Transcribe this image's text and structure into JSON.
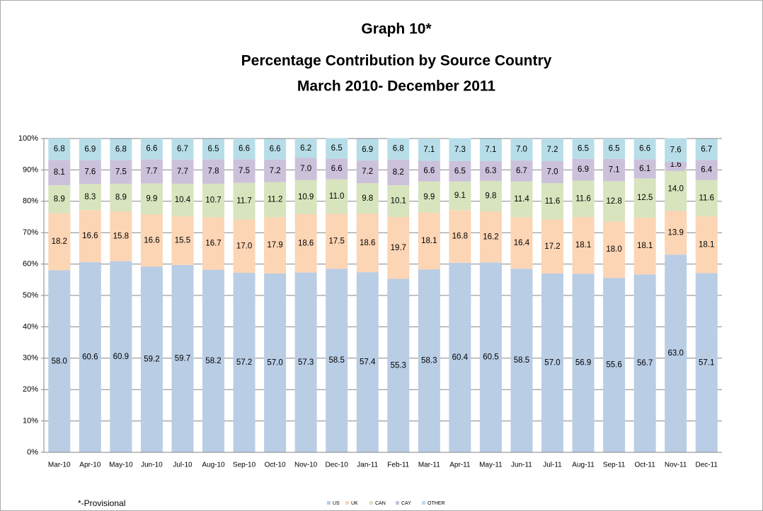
{
  "chart_data": {
    "type": "stacked_bar",
    "title": [
      "Graph 10*",
      "Percentage Contribution by Source Country",
      "March 2010- December 2011"
    ],
    "footnote": "*-Provisional",
    "categories": [
      "Mar-10",
      "Apr-10",
      "May-10",
      "Jun-10",
      "Jul-10",
      "Aug-10",
      "Sep-10",
      "Oct-10",
      "Nov-10",
      "Dec-10",
      "Jan-11",
      "Feb-11",
      "Mar-11",
      "Apr-11",
      "May-11",
      "Jun-11",
      "Jul-11",
      "Aug-11",
      "Sep-11",
      "Oct-11",
      "Nov-11",
      "Dec-11"
    ],
    "series": [
      {
        "name": "US",
        "color": "#b9cde5",
        "values": [
          58.0,
          60.6,
          60.9,
          59.2,
          59.7,
          58.2,
          57.2,
          57.0,
          57.3,
          58.5,
          57.4,
          55.3,
          58.3,
          60.4,
          60.5,
          58.5,
          57.0,
          56.9,
          55.6,
          56.7,
          63.0,
          57.1
        ],
        "value_labels": [
          "58.0",
          "60.6",
          "60.9",
          "59.2",
          "59.7",
          "58.2",
          "57.2",
          "57.0",
          "57.3",
          "58.5",
          "57.4",
          "55.3",
          "58.3",
          "60.4",
          "60.5",
          "58.5",
          "57.0",
          "56.9",
          "55.6",
          "56.7",
          "63.0",
          "57.1"
        ]
      },
      {
        "name": "UK",
        "color": "#fcd5b5",
        "values": [
          18.2,
          16.6,
          15.8,
          16.6,
          15.5,
          16.7,
          17.0,
          17.9,
          18.6,
          17.5,
          18.6,
          19.7,
          18.1,
          16.8,
          16.2,
          16.4,
          17.2,
          18.1,
          18.0,
          18.1,
          13.9,
          18.1
        ],
        "value_labels": [
          "18.2",
          "16.6",
          "15.8",
          "16.6",
          "15.5",
          "16.7",
          "17.0",
          "17.9",
          "18.6",
          "17.5",
          "18.6",
          "19.7",
          "18.1",
          "16.8",
          "16.2",
          "16.4",
          "17.2",
          "18.1",
          "18.0",
          "18.1",
          "13.9",
          "18.1"
        ]
      },
      {
        "name": "CAN",
        "color": "#d7e4bd",
        "values": [
          8.9,
          8.3,
          8.9,
          9.9,
          10.4,
          10.7,
          11.7,
          11.2,
          10.9,
          11.0,
          9.8,
          10.1,
          9.9,
          9.1,
          9.8,
          11.4,
          11.6,
          11.6,
          12.8,
          12.5,
          14.0,
          11.6
        ],
        "value_labels": [
          "8.9",
          "8.3",
          "8.9",
          "9.9",
          "10.4",
          "10.7",
          "11.7",
          "11.2",
          "10.9",
          "11.0",
          "9.8",
          "10.1",
          "9.9",
          "9.1",
          "9.8",
          "11.4",
          "11.6",
          "11.6",
          "12.8",
          "12.5",
          "14.0",
          "11.6"
        ]
      },
      {
        "name": "CAY",
        "color": "#ccc1da",
        "values": [
          8.1,
          7.6,
          7.5,
          7.7,
          7.7,
          7.8,
          7.5,
          7.2,
          7.0,
          6.6,
          7.2,
          8.2,
          6.6,
          6.5,
          6.3,
          6.7,
          7.0,
          6.9,
          7.1,
          6.1,
          1.6,
          6.4
        ],
        "value_labels": [
          "8.1",
          "7.6",
          "7.5",
          "7.7",
          "7.7",
          "7.8",
          "7.5",
          "7.2",
          "7.0",
          "6.6",
          "7.2",
          "8.2",
          "6.6",
          "6.5",
          "6.3",
          "6.7",
          "7.0",
          "6.9",
          "7.1",
          "6.1",
          "1.6",
          "6.4"
        ]
      },
      {
        "name": "OTHER",
        "color": "#b7dee8",
        "values": [
          6.8,
          6.9,
          6.8,
          6.6,
          6.7,
          6.5,
          6.6,
          6.6,
          6.2,
          6.5,
          6.9,
          6.8,
          7.1,
          7.3,
          7.1,
          7.0,
          7.2,
          6.5,
          6.5,
          6.6,
          7.6,
          6.7
        ],
        "value_labels": [
          "6.8",
          "6.9",
          "6.8",
          "6.6",
          "6.7",
          "6.5",
          "6.6",
          "6.6",
          "6.2",
          "6.5",
          "6.9",
          "6.8",
          "7.1",
          "7.3",
          "7.1",
          "7.0",
          "7.2",
          "6.5",
          "6.5",
          "6.6",
          "7.6",
          "6.7"
        ]
      }
    ],
    "ylim": [
      0,
      100
    ],
    "yticks": [
      {
        "value": 0,
        "label": "0%"
      },
      {
        "value": 10,
        "label": "10%"
      },
      {
        "value": 20,
        "label": "20%"
      },
      {
        "value": 30,
        "label": "30%"
      },
      {
        "value": 40,
        "label": "40%"
      },
      {
        "value": 50,
        "label": "50%"
      },
      {
        "value": 60,
        "label": "60%"
      },
      {
        "value": 70,
        "label": "70%"
      },
      {
        "value": 80,
        "label": "80%"
      },
      {
        "value": 90,
        "label": "90%"
      },
      {
        "value": 100,
        "label": "100%"
      }
    ],
    "grid": true,
    "legend": "bottom"
  }
}
